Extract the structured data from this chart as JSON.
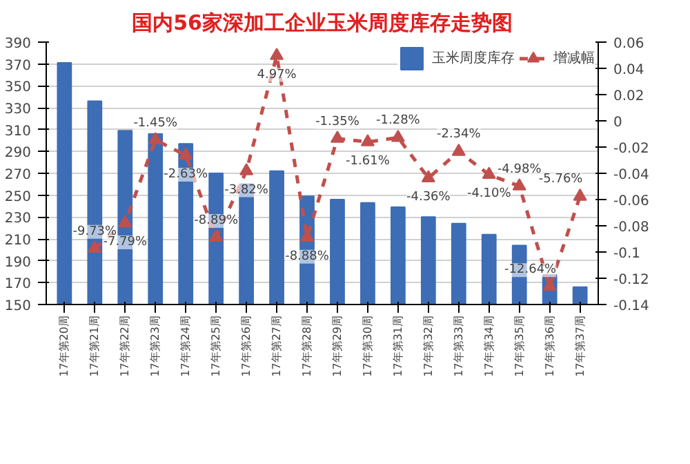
{
  "chart_data": {
    "type": "bar",
    "title": "国内56家深加工企业玉米周度库存走势图",
    "categories": [
      "17年第20周",
      "17年第21周",
      "17年第22周",
      "17年第23周",
      "17年第24周",
      "17年第25周",
      "17年第26周",
      "17年第27周",
      "17年第28周",
      "17年第29周",
      "17年第30周",
      "17年第31周",
      "17年第32周",
      "17年第33周",
      "17年第34周",
      "17年第35周",
      "17年第36周",
      "17年第37周"
    ],
    "series": [
      {
        "name": "玉米周度库存",
        "color": "#3d6db5",
        "values": [
          371,
          336,
          309,
          306,
          297,
          270,
          260,
          272,
          249,
          246,
          243,
          239,
          230,
          224,
          214,
          204,
          177,
          166
        ]
      },
      {
        "name": "增减幅",
        "type": "line",
        "axis": "y2",
        "color": "#c0504d",
        "line_style": "dashed",
        "marker": "triangle",
        "values": [
          null,
          -0.0973,
          -0.0779,
          -0.0145,
          -0.0263,
          -0.0889,
          -0.0382,
          0.0497,
          -0.0888,
          -0.0135,
          -0.0161,
          -0.0128,
          -0.0436,
          -0.0234,
          -0.041,
          -0.0498,
          -0.1264,
          -0.0576
        ],
        "value_labels": [
          null,
          "-9.73%",
          "-7.79%",
          "-1.45%",
          "-2.63%",
          "-8.89%",
          "-3.82%",
          "4.97%",
          "-8.88%",
          "-1.35%",
          "-1.61%",
          "-1.28%",
          "-4.36%",
          "-2.34%",
          "-4.10%",
          "-4.98%",
          "-12.64%",
          "-5.76%"
        ]
      }
    ],
    "ylim": [
      150,
      390
    ],
    "yticks": [
      150,
      170,
      190,
      210,
      230,
      250,
      270,
      290,
      310,
      330,
      350,
      370,
      390
    ],
    "y2lim": [
      -0.14,
      0.06
    ],
    "y2ticks": [
      -0.14,
      -0.12,
      -0.1,
      -0.08,
      -0.06,
      -0.04,
      -0.02,
      0,
      0.02,
      0.04,
      0.06
    ],
    "grid": "y",
    "legend": "top right"
  }
}
